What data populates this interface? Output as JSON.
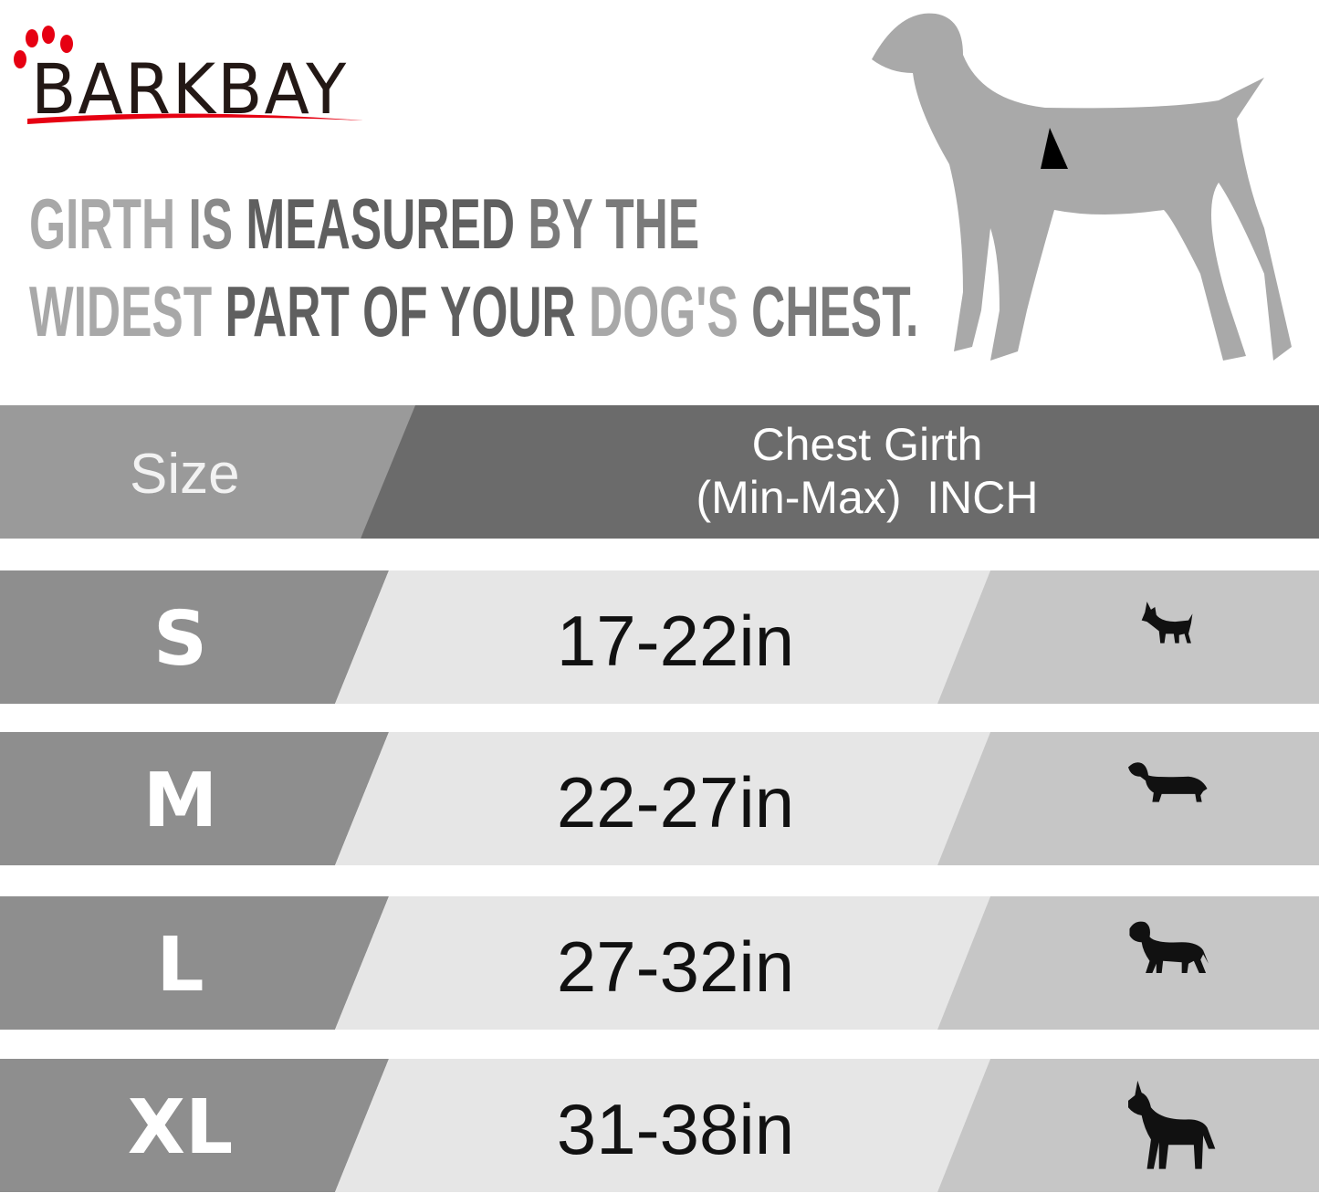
{
  "brand": {
    "name": "BARKBAY",
    "accent": "#e60012"
  },
  "headline": {
    "line1": [
      {
        "t": "GIRTH ",
        "c": "g1"
      },
      {
        "t": "IS ",
        "c": "g2"
      },
      {
        "t": "MEASURED ",
        "c": "g3"
      },
      {
        "t": "BY THE",
        "c": "g4"
      }
    ],
    "line2": [
      {
        "t": "WIDEST ",
        "c": "g1"
      },
      {
        "t": "PART OF YOUR ",
        "c": "g3"
      },
      {
        "t": "DOG'S ",
        "c": "g1"
      },
      {
        "t": "CHEST.",
        "c": "g4"
      }
    ]
  },
  "table": {
    "header": {
      "size": "Size",
      "girth_line1": "Chest Girth",
      "girth_line2": "(Min-Max)  INCH"
    },
    "rows": [
      {
        "size": "S",
        "girth": "17-22in",
        "icon": "chihuahua-icon"
      },
      {
        "size": "M",
        "girth": "22-27in",
        "icon": "dachshund-icon"
      },
      {
        "size": "L",
        "girth": "27-32in",
        "icon": "labrador-icon"
      },
      {
        "size": "XL",
        "girth": "31-38in",
        "icon": "great-dane-icon"
      }
    ]
  }
}
